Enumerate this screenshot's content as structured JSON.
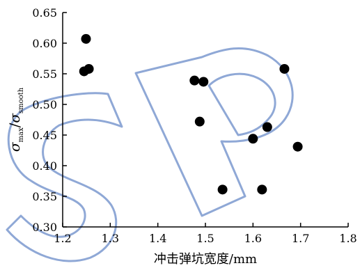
{
  "chart_data": {
    "type": "scatter",
    "xlabel": "冲击弹坑宽度/mm",
    "ylabel": {
      "symbol1": "σ",
      "sub1": "max",
      "slash": "/",
      "symbol2": "σ",
      "sub2": "smooth"
    },
    "xlim": [
      1.2,
      1.8
    ],
    "ylim": [
      0.3,
      0.65
    ],
    "x_ticks": [
      "1.2",
      "1.3",
      "1.4",
      "1.5",
      "1.6",
      "1.7",
      "1.8"
    ],
    "y_ticks": [
      "0.30",
      "0.35",
      "0.40",
      "0.45",
      "0.50",
      "0.55",
      "0.60",
      "0.65"
    ],
    "grid": false,
    "series": [
      {
        "marker": "filled-circle",
        "color": "#000000",
        "points": [
          {
            "x": 1.249,
            "y": 0.607
          },
          {
            "x": 1.255,
            "y": 0.558
          },
          {
            "x": 1.245,
            "y": 0.554
          },
          {
            "x": 1.477,
            "y": 0.539
          },
          {
            "x": 1.496,
            "y": 0.537
          },
          {
            "x": 1.488,
            "y": 0.472
          },
          {
            "x": 1.536,
            "y": 0.361
          },
          {
            "x": 1.6,
            "y": 0.444
          },
          {
            "x": 1.63,
            "y": 0.463
          },
          {
            "x": 1.619,
            "y": 0.361
          },
          {
            "x": 1.666,
            "y": 0.558
          },
          {
            "x": 1.694,
            "y": 0.431
          }
        ]
      }
    ]
  },
  "watermark": {
    "text": "SP",
    "color": "#8fa8d6"
  }
}
